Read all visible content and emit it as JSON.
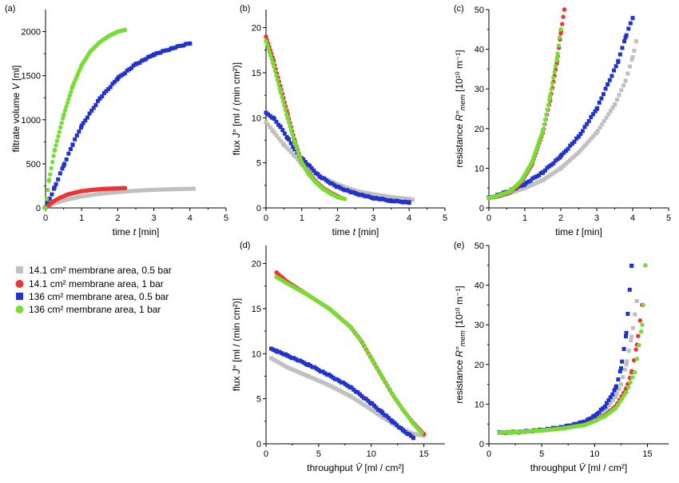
{
  "colors": {
    "s1": "#c0c0c0",
    "s2": "#ee3333",
    "s3": "#2233cc",
    "s4": "#77dd33"
  },
  "legend": {
    "s1": "14.1 cm² membrane area, 0.5 bar",
    "s2": "14.1 cm² membrane area, 1 bar",
    "s3": "136 cm² membrane area, 0.5 bar",
    "s4": "136 cm² membrane area, 1 bar"
  },
  "chart_data": [
    {
      "panel": "(a)",
      "type": "scatter",
      "xlabel_main": "time ",
      "xlabel_sym": "t",
      "xlabel_unit": " [min]",
      "ylabel_main": "filtrate volume ",
      "ylabel_sym": "V",
      "ylabel_unit": " [ml]",
      "xlim": [
        0,
        5
      ],
      "ylim": [
        0,
        2250
      ],
      "xticks": [
        "0",
        "1",
        "2",
        "3",
        "4",
        "5"
      ],
      "yticks": [
        "0",
        "500",
        "1000",
        "1500",
        "2000"
      ],
      "series": [
        {
          "key": "s1",
          "x": [
            0,
            0.2,
            0.4,
            0.7,
            1.0,
            1.5,
            2.0,
            2.5,
            3.0,
            3.5,
            4.1
          ],
          "y": [
            0,
            45,
            75,
            105,
            130,
            160,
            180,
            195,
            205,
            212,
            218
          ]
        },
        {
          "key": "s2",
          "x": [
            0,
            0.2,
            0.4,
            0.6,
            0.8,
            1.0,
            1.3,
            1.6,
            2.0,
            2.2
          ],
          "y": [
            0,
            70,
            115,
            150,
            172,
            190,
            205,
            215,
            222,
            225
          ]
        },
        {
          "key": "s3",
          "x": [
            0,
            0.25,
            0.5,
            0.75,
            1.0,
            1.5,
            2.0,
            2.5,
            3.0,
            3.5,
            4.0
          ],
          "y": [
            0,
            230,
            480,
            720,
            930,
            1240,
            1470,
            1630,
            1740,
            1810,
            1870
          ]
        },
        {
          "key": "s4",
          "x": [
            0,
            0.1,
            0.25,
            0.5,
            0.75,
            1.0,
            1.25,
            1.5,
            1.75,
            2.0,
            2.2
          ],
          "y": [
            0,
            320,
            650,
            1050,
            1380,
            1620,
            1780,
            1880,
            1950,
            2000,
            2020
          ]
        }
      ]
    },
    {
      "panel": "(b)",
      "type": "scatter",
      "xlabel_main": "time ",
      "xlabel_sym": "t",
      "xlabel_unit": " [min]",
      "ylabel_main": "flux ",
      "ylabel_sym": "J°",
      "ylabel_unit": " [ml / (min cm²)]",
      "xlim": [
        0,
        5
      ],
      "ylim": [
        0,
        22
      ],
      "xticks": [
        "0",
        "1",
        "2",
        "3",
        "4",
        "5"
      ],
      "yticks": [
        "0",
        "5",
        "10",
        "15",
        "20"
      ],
      "series": [
        {
          "key": "s1",
          "x": [
            0,
            0.2,
            0.5,
            0.8,
            1.0,
            1.5,
            2.0,
            2.5,
            3.0,
            3.5,
            4.0,
            4.1
          ],
          "y": [
            9.5,
            8.5,
            7.0,
            5.8,
            4.8,
            3.5,
            2.6,
            1.9,
            1.5,
            1.2,
            1.0,
            0.9
          ]
        },
        {
          "key": "s2",
          "x": [
            0,
            0.2,
            0.4,
            0.6,
            0.8,
            1.0,
            1.2,
            1.4,
            1.6,
            1.8,
            2.0,
            2.1
          ],
          "y": [
            19,
            16.5,
            13.5,
            10.5,
            7.5,
            5.0,
            3.8,
            2.9,
            2.2,
            1.7,
            1.3,
            1.1
          ]
        },
        {
          "key": "s3",
          "x": [
            0,
            0.2,
            0.4,
            0.6,
            0.8,
            1.0,
            1.5,
            2.0,
            2.5,
            3.0,
            3.5,
            4.0
          ],
          "y": [
            10.5,
            10.0,
            9.0,
            7.8,
            6.5,
            5.5,
            3.5,
            2.3,
            1.6,
            1.1,
            0.8,
            0.6
          ]
        },
        {
          "key": "s4",
          "x": [
            0,
            0.2,
            0.4,
            0.6,
            0.8,
            1.0,
            1.2,
            1.4,
            1.6,
            1.8,
            2.0,
            2.2
          ],
          "y": [
            18.5,
            16.0,
            13.0,
            10.0,
            7.3,
            5.0,
            3.7,
            2.8,
            2.1,
            1.6,
            1.2,
            1.0
          ]
        }
      ]
    },
    {
      "panel": "(c)",
      "type": "scatter",
      "xlabel_main": "time ",
      "xlabel_sym": "t",
      "xlabel_unit": " [min]",
      "ylabel_main": "resistance ",
      "ylabel_sym": "R°",
      "ylabel_sub": "mem",
      "ylabel_unit": " [10¹⁰ m⁻¹]",
      "xlim": [
        0,
        5
      ],
      "ylim": [
        0,
        50
      ],
      "xticks": [
        "0",
        "1",
        "2",
        "3",
        "4",
        "5"
      ],
      "yticks": [
        "0",
        "10",
        "20",
        "30",
        "40",
        "50"
      ],
      "series": [
        {
          "key": "s1",
          "x": [
            0,
            0.5,
            1.0,
            1.5,
            2.0,
            2.5,
            3.0,
            3.5,
            3.8,
            4.0,
            4.1
          ],
          "y": [
            2.5,
            3.5,
            5.0,
            7.0,
            10.0,
            14.0,
            19.0,
            26.0,
            32.0,
            38.0,
            42.0
          ]
        },
        {
          "key": "s2",
          "x": [
            0,
            0.3,
            0.6,
            0.9,
            1.2,
            1.5,
            1.7,
            1.9,
            2.0,
            2.1
          ],
          "y": [
            2.5,
            3.0,
            4.0,
            6.5,
            11.0,
            19.0,
            27.0,
            37.0,
            44.0,
            50.0
          ]
        },
        {
          "key": "s3",
          "x": [
            0,
            0.5,
            1.0,
            1.5,
            2.0,
            2.5,
            3.0,
            3.3,
            3.6,
            3.8,
            4.0
          ],
          "y": [
            2.5,
            4.0,
            6.0,
            9.0,
            13.0,
            18.0,
            25.0,
            31.0,
            37.0,
            43.0,
            48.0
          ]
        },
        {
          "key": "s4",
          "x": [
            0,
            0.3,
            0.6,
            0.9,
            1.2,
            1.5,
            1.7,
            1.9,
            2.0
          ],
          "y": [
            2.5,
            3.2,
            4.2,
            6.8,
            11.5,
            19.5,
            28.0,
            38.0,
            45.0
          ]
        }
      ]
    },
    {
      "panel": "(d)",
      "type": "scatter",
      "xlabel_main": "throughput ",
      "xlabel_sym": "V̄",
      "xlabel_unit": " [ml / cm²]",
      "ylabel_main": "flux ",
      "ylabel_sym": "J°",
      "ylabel_unit": " [ml / (min cm²)]",
      "xlim": [
        0,
        17
      ],
      "ylim": [
        0,
        22
      ],
      "xticks": [
        "0",
        "5",
        "10",
        "15"
      ],
      "yticks": [
        "0",
        "5",
        "10",
        "15",
        "20"
      ],
      "series": [
        {
          "key": "s1",
          "x": [
            0.5,
            2,
            4,
            6,
            8,
            10,
            11,
            12,
            13,
            14,
            15
          ],
          "y": [
            9.5,
            8.5,
            7.5,
            6.5,
            5.3,
            3.8,
            3.0,
            2.3,
            1.6,
            1.1,
            0.9
          ]
        },
        {
          "key": "s2",
          "x": [
            1,
            2,
            4,
            6,
            8,
            9,
            10,
            11,
            12,
            13,
            14,
            15
          ],
          "y": [
            19,
            18,
            16.5,
            15,
            13,
            11.5,
            9.5,
            7.5,
            5.5,
            3.8,
            2.3,
            1.1
          ]
        },
        {
          "key": "s3",
          "x": [
            0.5,
            1,
            2,
            4,
            6,
            8,
            10,
            11,
            12,
            13,
            14
          ],
          "y": [
            10.5,
            10.3,
            9.8,
            8.8,
            7.6,
            6.3,
            4.5,
            3.5,
            2.5,
            1.5,
            0.7
          ]
        },
        {
          "key": "s4",
          "x": [
            1,
            2,
            4,
            6,
            8,
            9,
            10,
            11,
            12,
            13,
            14,
            14.8
          ],
          "y": [
            18.5,
            17.8,
            16.5,
            15,
            13,
            11.5,
            9.5,
            7.5,
            5.5,
            3.8,
            2.2,
            1.2
          ]
        }
      ]
    },
    {
      "panel": "(e)",
      "type": "scatter",
      "xlabel_main": "throughput ",
      "xlabel_sym": "V̄",
      "xlabel_unit": " [ml / cm²]",
      "ylabel_main": "resistance ",
      "ylabel_sym": "R°",
      "ylabel_sub": "mem",
      "ylabel_unit": " [10¹⁰ m⁻¹]",
      "xlim": [
        0,
        17
      ],
      "ylim": [
        0,
        50
      ],
      "xticks": [
        "0",
        "5",
        "10",
        "15"
      ],
      "yticks": [
        "0",
        "10",
        "20",
        "30",
        "40",
        "50"
      ],
      "series": [
        {
          "key": "s1",
          "x": [
            1,
            3,
            5,
            7,
            9,
            10,
            11,
            12,
            12.5,
            13,
            13.5,
            14
          ],
          "y": [
            2.8,
            3.0,
            3.4,
            4.0,
            5.2,
            6.5,
            8.5,
            12,
            15,
            20,
            27,
            36
          ]
        },
        {
          "key": "s2",
          "x": [
            1,
            3,
            5,
            7,
            9,
            10,
            11,
            12,
            13,
            13.5,
            14,
            14.5
          ],
          "y": [
            2.8,
            3.0,
            3.4,
            3.9,
            4.8,
            5.8,
            7.2,
            9.5,
            14,
            18,
            25,
            35
          ]
        },
        {
          "key": "s3",
          "x": [
            1,
            3,
            5,
            7,
            9,
            10,
            11,
            12,
            12.5,
            13,
            13.5
          ],
          "y": [
            2.8,
            3.0,
            3.5,
            4.2,
            5.5,
            7.0,
            9.5,
            14,
            19,
            28,
            45
          ]
        },
        {
          "key": "s4",
          "x": [
            1,
            3,
            5,
            7,
            9,
            10,
            11,
            12,
            13,
            13.8,
            14.5,
            14.8
          ],
          "y": [
            2.8,
            3.0,
            3.4,
            3.9,
            4.7,
            5.7,
            7.0,
            9.0,
            13,
            18,
            30,
            45
          ]
        }
      ]
    }
  ]
}
